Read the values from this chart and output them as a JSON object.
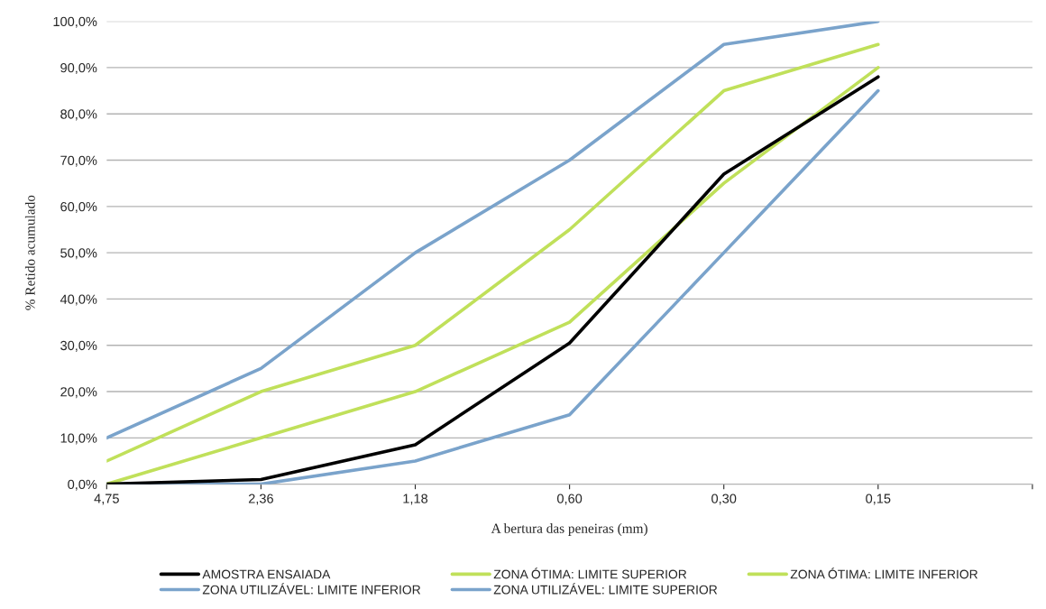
{
  "chart_data": {
    "type": "line",
    "xlabel": "A bertura das peneiras (mm)",
    "ylabel": "% Retido acumulado",
    "categories": [
      "4,75",
      "2,36",
      "1,18",
      "0,60",
      "0,30",
      "0,15",
      null
    ],
    "series": [
      {
        "name": "AMOSTRA ENSAIADA",
        "color": "#000000",
        "values": [
          0,
          1,
          8.5,
          30.5,
          67,
          88,
          null
        ]
      },
      {
        "name": "ZONA ÓTIMA: LIMITE SUPERIOR",
        "color": "#c0e05a",
        "values": [
          5,
          20,
          30,
          55,
          85,
          95,
          null
        ]
      },
      {
        "name": "ZONA ÓTIMA: LIMITE INFERIOR",
        "color": "#c0e05a",
        "values": [
          0,
          10,
          20,
          35,
          65,
          90,
          null
        ]
      },
      {
        "name": "ZONA UTILIZÁVEL: LIMITE INFERIOR",
        "color": "#7aa3cb",
        "values": [
          0,
          0,
          5,
          15,
          50,
          85,
          null
        ]
      },
      {
        "name": "ZONA UTILIZÁVEL: LIMITE SUPERIOR",
        "color": "#7aa3cb",
        "values": [
          10,
          25,
          50,
          70,
          95,
          100,
          null
        ]
      }
    ],
    "ylim": [
      0,
      100
    ],
    "yticks": [
      {
        "value": 0,
        "label": "0,0%"
      },
      {
        "value": 10,
        "label": "10,0%"
      },
      {
        "value": 20,
        "label": "20,0%"
      },
      {
        "value": 30,
        "label": "30,0%"
      },
      {
        "value": 40,
        "label": "40,0%"
      },
      {
        "value": 50,
        "label": "50,0%"
      },
      {
        "value": 60,
        "label": "60,0%"
      },
      {
        "value": 70,
        "label": "70,0%"
      },
      {
        "value": 80,
        "label": "80,0%"
      },
      {
        "value": 90,
        "label": "90,0%"
      },
      {
        "value": 100,
        "label": "100,0%"
      }
    ],
    "grid": "y",
    "legend": "bottom",
    "marker": "none",
    "line_style": "solid"
  }
}
